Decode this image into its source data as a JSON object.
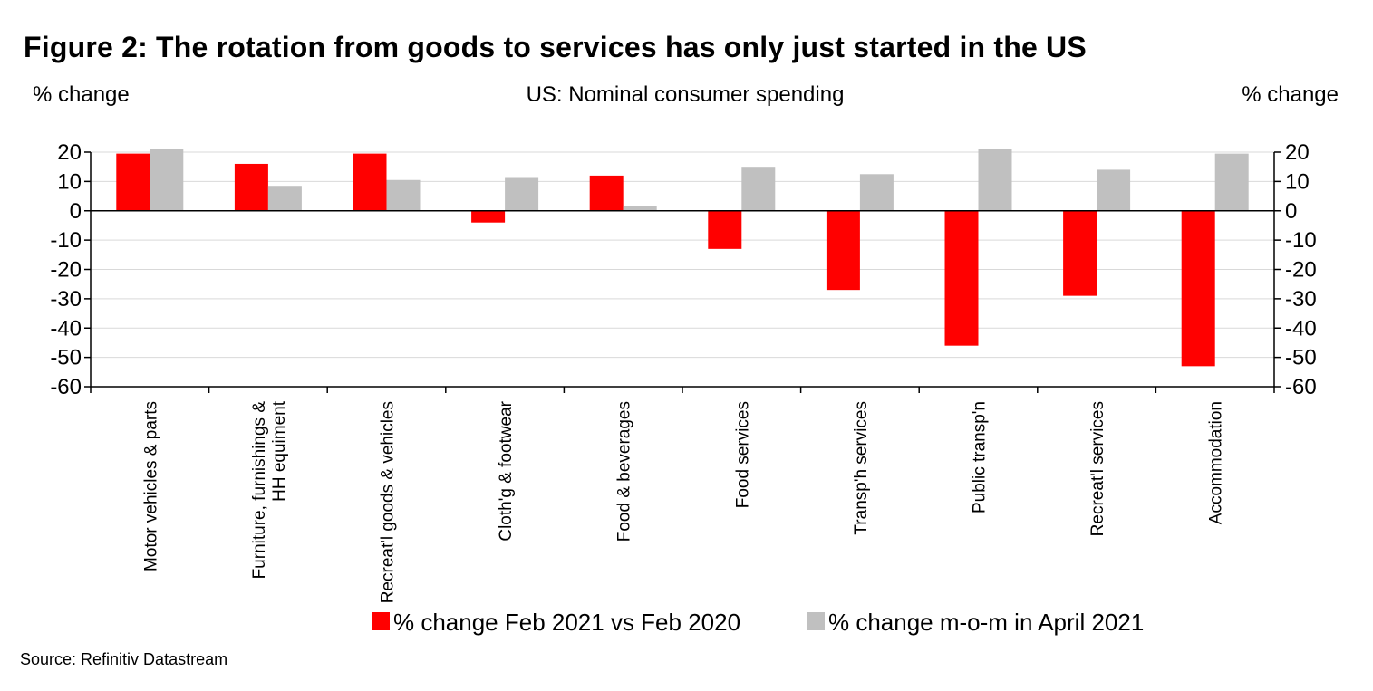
{
  "figure": {
    "title": "Figure 2: The rotation from goods to services has only just started in the US",
    "source": "Source: Refinitiv Datastream"
  },
  "chart_data": {
    "type": "bar",
    "title": "US: Nominal consumer spending",
    "ylabel_left": "% change",
    "ylabel_right": "% change",
    "ylim": [
      -60,
      20
    ],
    "yticks": [
      20,
      10,
      0,
      -10,
      -20,
      -30,
      -40,
      -50,
      -60
    ],
    "grid": true,
    "legend_position": "bottom",
    "categories": [
      "Motor vehicles & parts",
      "Furniture, furnishings & HH equiment",
      "Recreat'l goods & vehicles",
      "Cloth'g & footwear",
      "Food & beverages",
      "Food services",
      "Transp'h services",
      "Public transp'n",
      "Recreat'l services",
      "Accommodation"
    ],
    "series": [
      {
        "name": "% change Feb 2021 vs Feb 2020",
        "color": "#ff0000",
        "values": [
          19.5,
          16,
          19.5,
          -4,
          12,
          -13,
          -27,
          -46,
          -29,
          -53
        ]
      },
      {
        "name": "% change m-o-m in April 2021",
        "color": "#c0c0c0",
        "values": [
          21,
          8.5,
          10.5,
          11.5,
          1.5,
          15,
          12.5,
          21,
          14,
          19.5
        ]
      }
    ]
  }
}
